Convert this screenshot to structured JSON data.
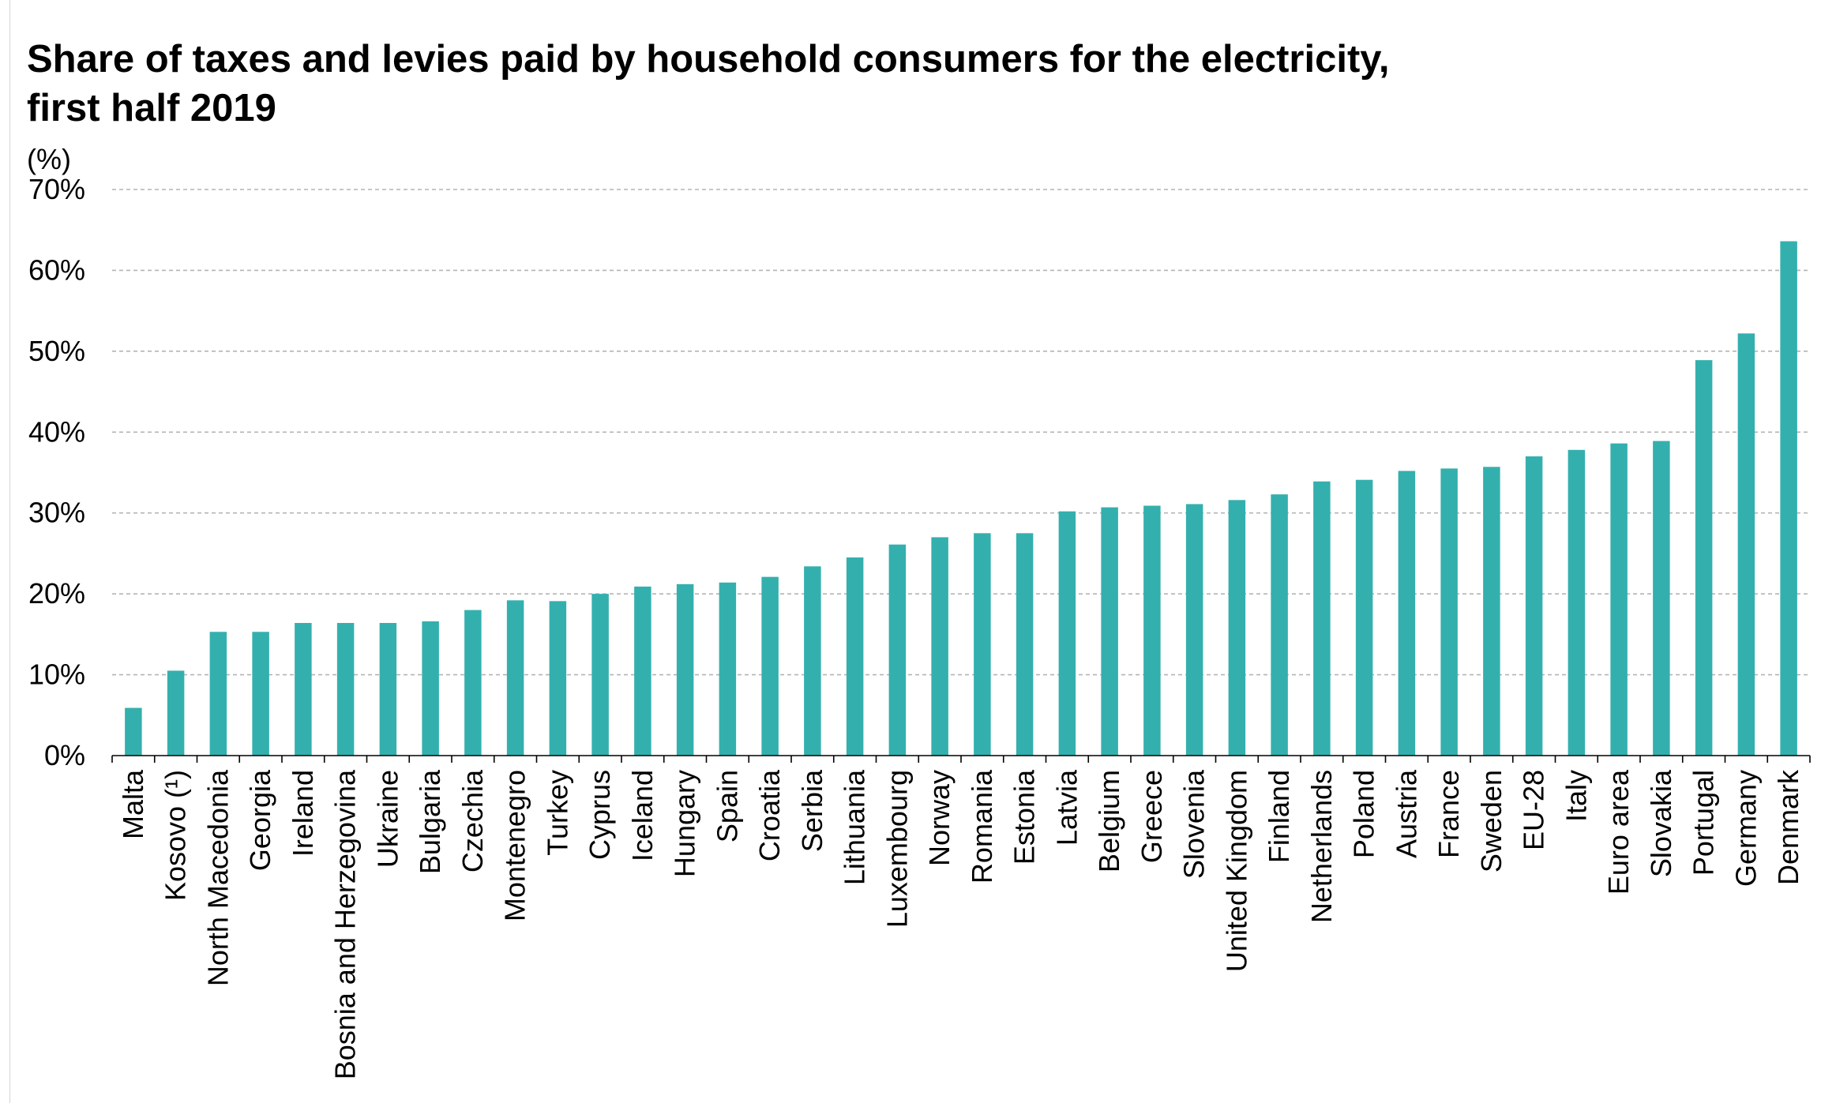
{
  "chart_data": {
    "type": "bar",
    "title": "Share of taxes and levies paid by household consumers for the electricity, first half 2019",
    "ylabel": "(%)",
    "xlabel": "",
    "ylim": [
      0,
      70
    ],
    "y_ticks": [
      0,
      10,
      20,
      30,
      40,
      50,
      60,
      70
    ],
    "y_tick_suffix": "%",
    "grid": true,
    "bar_color": "#33b0ae",
    "categories": [
      "Malta",
      "Kosovo (¹)",
      "North Macedonia",
      "Georgia",
      "Ireland",
      "Bosnia and Herzegovina",
      "Ukraine",
      "Bulgaria",
      "Czechia",
      "Montenegro",
      "Turkey",
      "Cyprus",
      "Iceland",
      "Hungary",
      "Spain",
      "Croatia",
      "Serbia",
      "Lithuania",
      "Luxembourg",
      "Norway",
      "Romania",
      "Estonia",
      "Latvia",
      "Belgium",
      "Greece",
      "Slovenia",
      "United Kingdom",
      "Finland",
      "Netherlands",
      "Poland",
      "Austria",
      "France",
      "Sweden",
      "EU-28",
      "Italy",
      "Euro area",
      "Slovakia",
      "Portugal",
      "Germany",
      "Denmark"
    ],
    "values": [
      5.9,
      10.5,
      15.3,
      15.3,
      16.4,
      16.4,
      16.4,
      16.6,
      18.0,
      19.2,
      19.1,
      20.0,
      20.9,
      21.2,
      21.4,
      22.1,
      23.4,
      24.5,
      26.1,
      27.0,
      27.5,
      27.5,
      30.2,
      30.7,
      30.9,
      31.1,
      31.6,
      32.3,
      33.9,
      34.1,
      35.2,
      35.5,
      35.7,
      37.0,
      37.8,
      38.6,
      38.9,
      48.9,
      52.2,
      63.6
    ]
  }
}
